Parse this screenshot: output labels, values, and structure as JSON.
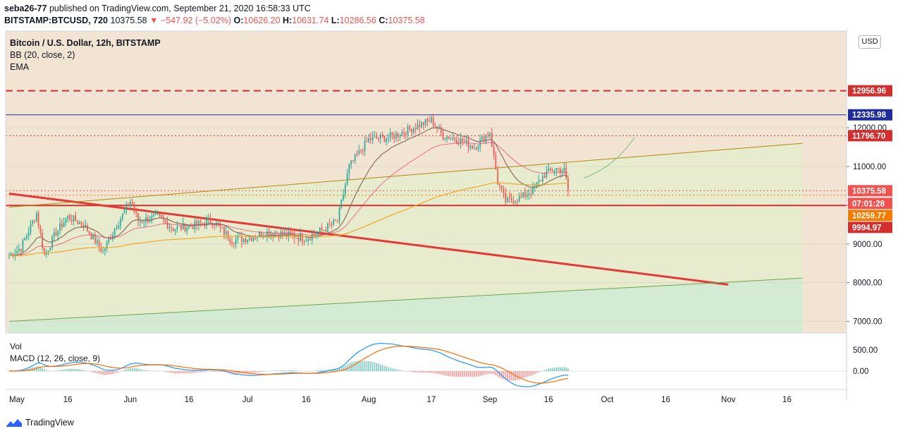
{
  "header": {
    "publisher_line": "seba26-77 published on TradingView.com, September 21, 2020 16:58:33 UTC",
    "publisher_name": "seba26-77",
    "publisher_rest": " published on TradingView.com, September 21, 2020 16:58:33 UTC",
    "symbol_line": "BITSTAMP:BTCUSD, 720",
    "last": "10375.58",
    "change": "▼ −547.92 (−5.02%)",
    "o_label": "O:",
    "o_value": "10626.20",
    "h_label": "H:",
    "h_value": "10631.74",
    "l_label": "L:",
    "l_value": "10286.56",
    "c_label": "C:",
    "c_value": "10375.58"
  },
  "legend": {
    "title": "Bitcoin / U.S. Dollar, 12h, BITSTAMP",
    "bb": "BB (20, close, 2)",
    "ema": "EMA"
  },
  "currency_button": "USD",
  "macd_legend": {
    "vol": "Vol",
    "macd": "MACD (12, 26, close, 9)"
  },
  "footer": {
    "brand": "TradingView"
  },
  "colors": {
    "up": "#26a69a",
    "down": "#ef5350",
    "bg_price": "#f2e4d3",
    "resistance_red": "#d32f2f",
    "blue_line": "#1e2c9c",
    "orange_tag": "#f57c00"
  },
  "chart_data": {
    "type": "candlestick",
    "symbol": "BITSTAMP:BTCUSD",
    "interval": "12h",
    "price_axis": {
      "min": 6700,
      "max": 14500,
      "ticks": [
        7000,
        8000,
        9000,
        10000,
        11000,
        12000
      ]
    },
    "price_tick_labels": [
      "7000.00",
      "8000.00",
      "9000.00",
      "10000.00",
      "11000.00",
      "12000.00"
    ],
    "time_axis_labels": [
      "May",
      "16",
      "Jun",
      "16",
      "Jul",
      "16",
      "Aug",
      "17",
      "Sep",
      "16",
      "Oct",
      "16",
      "Nov",
      "16"
    ],
    "price_tags": [
      {
        "label": "12956.96",
        "value": 12956.96,
        "color": "#d32f2f"
      },
      {
        "label": "12335.98",
        "value": 12335.98,
        "color": "#1e2c9c"
      },
      {
        "label": "11796.70",
        "value": 11796.7,
        "color": "#d32f2f"
      },
      {
        "label": "10375.58",
        "value": 10375.58,
        "color": "#ef5350"
      },
      {
        "label": "07:01:28",
        "value": null,
        "color": "#ef5350"
      },
      {
        "label": "10259.77",
        "value": 10259.77,
        "color": "#f57c00"
      },
      {
        "label": "9994.97",
        "value": 9994.97,
        "color": "#d32f2f"
      }
    ],
    "horizontal_levels": [
      {
        "value": 12956.96,
        "style": "dashed",
        "color": "#d32f2f"
      },
      {
        "value": 12335.98,
        "style": "solid",
        "color": "#1e2c9c"
      },
      {
        "value": 11796.7,
        "style": "dotted",
        "color": "#d32f2f"
      },
      {
        "value": 10375.58,
        "style": "dotted",
        "color": "#ef5350"
      },
      {
        "value": 10259.77,
        "style": "dotted",
        "color": "#f57c00"
      },
      {
        "value": 9994.97,
        "style": "solid",
        "color": "#d32f2f"
      }
    ],
    "trendlines": [
      {
        "name": "downtrend",
        "from": [
          "May 1",
          10300
        ],
        "to": [
          "Nov 1",
          7950
        ],
        "color": "#e53935"
      },
      {
        "name": "upper channel",
        "from": [
          "May 1",
          9950
        ],
        "to": [
          "Nov 20",
          11600
        ],
        "color": "#b8860b"
      },
      {
        "name": "lower channel",
        "from": [
          "May 1",
          7000
        ],
        "to": [
          "Nov 20",
          8120
        ],
        "color": "#6aa84f"
      }
    ],
    "close_path": [
      [
        "May 1",
        8700
      ],
      [
        "May 4",
        8900
      ],
      [
        "May 8",
        9800
      ],
      [
        "May 10",
        8700
      ],
      [
        "May 13",
        9300
      ],
      [
        "May 16",
        9700
      ],
      [
        "May 20",
        9500
      ],
      [
        "May 25",
        8800
      ],
      [
        "May 28",
        9400
      ],
      [
        "Jun 1",
        10100
      ],
      [
        "Jun 3",
        9600
      ],
      [
        "Jun 8",
        9700
      ],
      [
        "Jun 12",
        9400
      ],
      [
        "Jun 16",
        9450
      ],
      [
        "Jun 22",
        9600
      ],
      [
        "Jun 27",
        9100
      ],
      [
        "Jul 1",
        9150
      ],
      [
        "Jul 6",
        9300
      ],
      [
        "Jul 10",
        9250
      ],
      [
        "Jul 16",
        9150
      ],
      [
        "Jul 21",
        9400
      ],
      [
        "Jul 24",
        9600
      ],
      [
        "Jul 27",
        11000
      ],
      [
        "Aug 1",
        11700
      ],
      [
        "Aug 6",
        11750
      ],
      [
        "Aug 10",
        11900
      ],
      [
        "Aug 17",
        12200
      ],
      [
        "Aug 20",
        11800
      ],
      [
        "Aug 24",
        11700
      ],
      [
        "Aug 28",
        11500
      ],
      [
        "Sep 1",
        11900
      ],
      [
        "Sep 3",
        10600
      ],
      [
        "Sep 5",
        10100
      ],
      [
        "Sep 9",
        10200
      ],
      [
        "Sep 12",
        10400
      ],
      [
        "Sep 15",
        10800
      ],
      [
        "Sep 18",
        10950
      ],
      [
        "Sep 20",
        10900
      ],
      [
        "Sep 21",
        10375.58
      ]
    ],
    "macd_axis": {
      "ticks": [
        500,
        0
      ],
      "tick_labels": [
        "500.00",
        "0.00"
      ]
    }
  }
}
